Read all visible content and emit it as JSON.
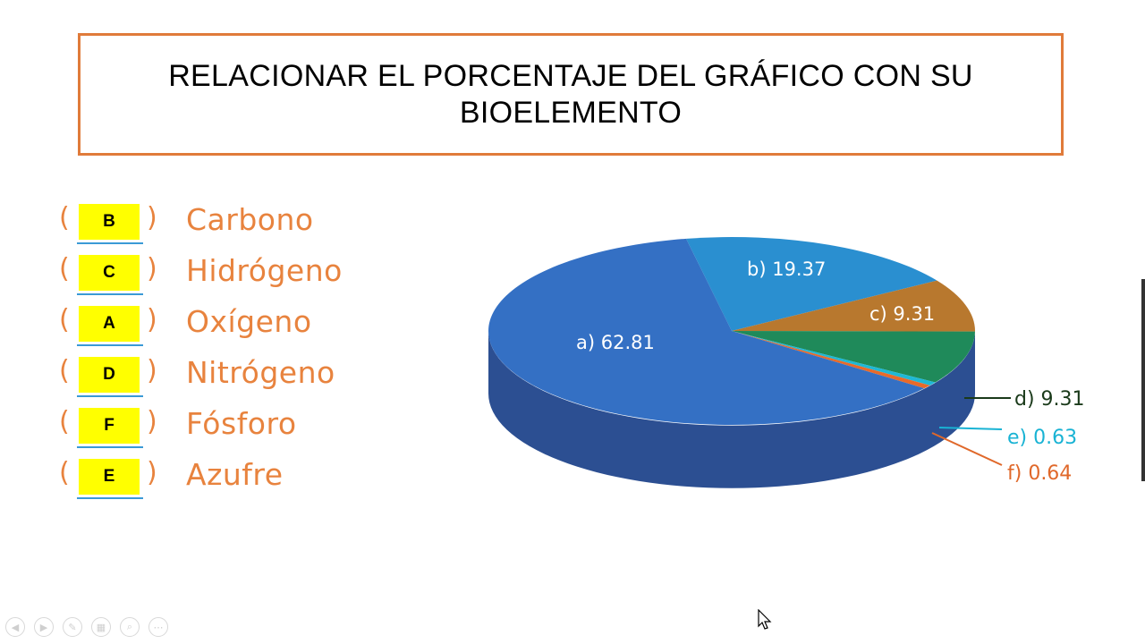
{
  "title": "RELACIONAR EL PORCENTAJE  DEL GRÁFICO CON SU BIOELEMENTO",
  "matching": [
    {
      "answer": "B",
      "element": "Carbono"
    },
    {
      "answer": "C",
      "element": "Hidrógeno"
    },
    {
      "answer": "A",
      "element": "Oxígeno"
    },
    {
      "answer": "D",
      "element": "Nitrógeno"
    },
    {
      "answer": "F",
      "element": "Fósforo"
    },
    {
      "answer": "E",
      "element": "Azufre"
    }
  ],
  "chart_data": {
    "type": "pie",
    "title": "",
    "slices": [
      {
        "label": "a) 62.81",
        "value": 62.81,
        "color": "#3470c4"
      },
      {
        "label": "b) 19.37",
        "value": 19.37,
        "color": "#2a8fd0"
      },
      {
        "label": "c) 9.31",
        "value": 9.31,
        "color": "#b8782e"
      },
      {
        "label": "d) 9.31",
        "value": 9.31,
        "color": "#1f8a5a"
      },
      {
        "label": "e) 0.63",
        "value": 0.63,
        "color": "#1fb8d6"
      },
      {
        "label": "f) 0.64",
        "value": 0.64,
        "color": "#e86a2a"
      }
    ],
    "label_colors": {
      "d": "#1a3a1a",
      "e": "#19b3d4",
      "f": "#e0682a"
    }
  },
  "toolbar": {
    "icons": [
      "back-icon",
      "forward-icon",
      "pen-icon",
      "slides-icon",
      "zoom-icon",
      "more-icon"
    ],
    "glyphs": [
      "◀",
      "▶",
      "✎",
      "▦",
      "⌕",
      "⋯"
    ]
  }
}
